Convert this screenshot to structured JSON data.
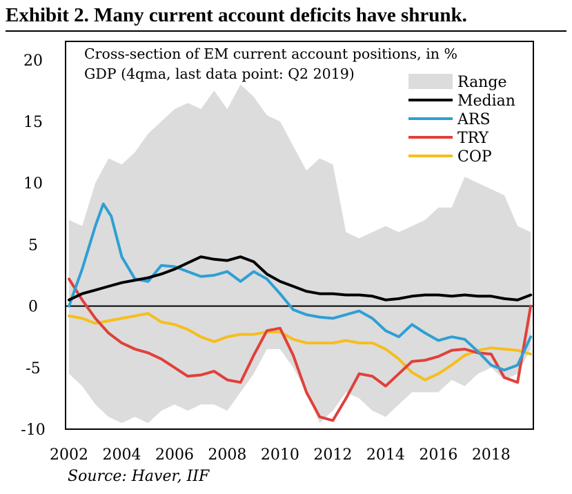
{
  "exhibit_title": "Exhibit 2. Many current account deficits have shrunk.",
  "source_note": "Source: Haver, IIF",
  "colors": {
    "range": "#dcdcdc",
    "median": "#000000",
    "ARS": "#2f9fd4",
    "TRY": "#e0403a",
    "COP": "#f6be1c",
    "axis": "#000000"
  },
  "chart_data": {
    "type": "line",
    "title": "Cross-section of EM current account positions, in % GDP (4qma, last data point: Q2 2019)",
    "title_lines": [
      "Cross-section of EM current account positions, in %",
      "GDP (4qma, last data point: Q2 2019)"
    ],
    "xlabel": "",
    "ylabel": "",
    "xlim": [
      2002,
      2019.6
    ],
    "ylim": [
      -10,
      21.5
    ],
    "xticks": [
      2002,
      2004,
      2006,
      2008,
      2010,
      2012,
      2014,
      2016,
      2018
    ],
    "yticks": [
      -10,
      -5,
      0,
      5,
      10,
      15,
      20
    ],
    "grid": false,
    "zero_line": true,
    "legend_position": "top-right",
    "range": {
      "name": "Range",
      "x": [
        2002.0,
        2002.5,
        2003.0,
        2003.5,
        2004.0,
        2004.5,
        2005.0,
        2005.5,
        2006.0,
        2006.5,
        2007.0,
        2007.5,
        2008.0,
        2008.5,
        2009.0,
        2009.5,
        2010.0,
        2010.5,
        2011.0,
        2011.5,
        2012.0,
        2012.5,
        2013.0,
        2013.5,
        2014.0,
        2014.5,
        2015.0,
        2015.5,
        2016.0,
        2016.5,
        2017.0,
        2017.5,
        2018.0,
        2018.5,
        2019.0,
        2019.5
      ],
      "high": [
        7.0,
        6.5,
        10.0,
        12.0,
        11.5,
        12.5,
        14.0,
        15.0,
        16.0,
        16.5,
        16.0,
        17.5,
        16.0,
        18.0,
        17.0,
        15.5,
        15.0,
        13.0,
        11.0,
        12.0,
        11.5,
        6.0,
        5.5,
        6.0,
        6.5,
        6.0,
        6.5,
        7.0,
        8.0,
        8.0,
        10.5,
        10.0,
        9.5,
        9.0,
        6.5,
        6.0
      ],
      "low": [
        -5.5,
        -6.5,
        -8.0,
        -9.0,
        -9.5,
        -9.0,
        -9.5,
        -8.5,
        -8.0,
        -8.5,
        -8.0,
        -8.0,
        -8.5,
        -7.0,
        -5.5,
        -3.5,
        -3.5,
        -5.0,
        -7.0,
        -9.5,
        -8.5,
        -7.0,
        -7.5,
        -8.5,
        -9.0,
        -8.0,
        -7.0,
        -7.0,
        -7.0,
        -6.0,
        -6.5,
        -5.5,
        -5.0,
        -6.0,
        -5.5,
        -3.5
      ]
    },
    "series": [
      {
        "name": "Median",
        "color": "#000000",
        "x": [
          2002.0,
          2002.5,
          2003.0,
          2003.5,
          2004.0,
          2004.5,
          2005.0,
          2005.5,
          2006.0,
          2006.5,
          2007.0,
          2007.5,
          2008.0,
          2008.5,
          2009.0,
          2009.5,
          2010.0,
          2010.5,
          2011.0,
          2011.5,
          2012.0,
          2012.5,
          2013.0,
          2013.5,
          2014.0,
          2014.5,
          2015.0,
          2015.5,
          2016.0,
          2016.5,
          2017.0,
          2017.5,
          2018.0,
          2018.5,
          2019.0,
          2019.5
        ],
        "y": [
          0.5,
          1.0,
          1.3,
          1.6,
          1.9,
          2.1,
          2.3,
          2.6,
          3.0,
          3.5,
          4.0,
          3.8,
          3.7,
          4.0,
          3.6,
          2.6,
          2.0,
          1.6,
          1.2,
          1.0,
          1.0,
          0.9,
          0.9,
          0.8,
          0.5,
          0.6,
          0.8,
          0.9,
          0.9,
          0.8,
          0.9,
          0.8,
          0.8,
          0.6,
          0.5,
          0.9
        ]
      },
      {
        "name": "ARS",
        "color": "#2f9fd4",
        "x": [
          2002.0,
          2002.5,
          2003.0,
          2003.3,
          2003.6,
          2004.0,
          2004.5,
          2005.0,
          2005.5,
          2006.0,
          2006.5,
          2007.0,
          2007.5,
          2008.0,
          2008.5,
          2009.0,
          2009.5,
          2010.0,
          2010.5,
          2011.0,
          2011.5,
          2012.0,
          2012.5,
          2013.0,
          2013.5,
          2014.0,
          2014.5,
          2015.0,
          2015.5,
          2016.0,
          2016.5,
          2017.0,
          2017.5,
          2018.0,
          2018.5,
          2019.0,
          2019.5
        ],
        "y": [
          0.0,
          3.0,
          6.5,
          8.3,
          7.3,
          4.0,
          2.2,
          2.0,
          3.3,
          3.2,
          2.8,
          2.4,
          2.5,
          2.8,
          2.0,
          2.8,
          2.2,
          1.0,
          -0.3,
          -0.7,
          -0.9,
          -1.0,
          -0.7,
          -0.4,
          -1.0,
          -2.0,
          -2.5,
          -1.5,
          -2.2,
          -2.8,
          -2.5,
          -2.7,
          -3.7,
          -4.8,
          -5.2,
          -4.8,
          -2.5
        ]
      },
      {
        "name": "TRY",
        "color": "#e0403a",
        "x": [
          2002.0,
          2002.5,
          2003.0,
          2003.5,
          2004.0,
          2004.5,
          2005.0,
          2005.5,
          2006.0,
          2006.5,
          2007.0,
          2007.5,
          2008.0,
          2008.5,
          2009.0,
          2009.5,
          2010.0,
          2010.5,
          2011.0,
          2011.5,
          2012.0,
          2012.5,
          2013.0,
          2013.5,
          2014.0,
          2014.5,
          2015.0,
          2015.5,
          2016.0,
          2016.5,
          2017.0,
          2017.5,
          2018.0,
          2018.5,
          2019.0,
          2019.5
        ],
        "y": [
          2.2,
          0.5,
          -1.0,
          -2.2,
          -3.0,
          -3.5,
          -3.8,
          -4.3,
          -5.0,
          -5.7,
          -5.6,
          -5.3,
          -6.0,
          -6.2,
          -4.0,
          -2.0,
          -1.8,
          -4.0,
          -7.0,
          -9.0,
          -9.3,
          -7.5,
          -5.5,
          -5.7,
          -6.5,
          -5.5,
          -4.5,
          -4.4,
          -4.1,
          -3.6,
          -3.5,
          -3.8,
          -3.9,
          -5.8,
          -6.2,
          0.0
        ]
      },
      {
        "name": "COP",
        "color": "#f6be1c",
        "x": [
          2002.0,
          2002.5,
          2003.0,
          2003.5,
          2004.0,
          2004.5,
          2005.0,
          2005.5,
          2006.0,
          2006.5,
          2007.0,
          2007.5,
          2008.0,
          2008.5,
          2009.0,
          2009.5,
          2010.0,
          2010.5,
          2011.0,
          2011.5,
          2012.0,
          2012.5,
          2013.0,
          2013.5,
          2014.0,
          2014.5,
          2015.0,
          2015.5,
          2016.0,
          2016.5,
          2017.0,
          2017.5,
          2018.0,
          2018.5,
          2019.0,
          2019.5
        ],
        "y": [
          -0.8,
          -1.0,
          -1.4,
          -1.2,
          -1.0,
          -0.8,
          -0.6,
          -1.3,
          -1.5,
          -1.9,
          -2.5,
          -2.9,
          -2.5,
          -2.3,
          -2.3,
          -2.1,
          -2.1,
          -2.7,
          -3.0,
          -3.0,
          -3.0,
          -2.8,
          -3.0,
          -3.0,
          -3.5,
          -4.3,
          -5.4,
          -6.0,
          -5.5,
          -4.8,
          -4.0,
          -3.6,
          -3.4,
          -3.5,
          -3.6,
          -3.9
        ]
      }
    ]
  }
}
